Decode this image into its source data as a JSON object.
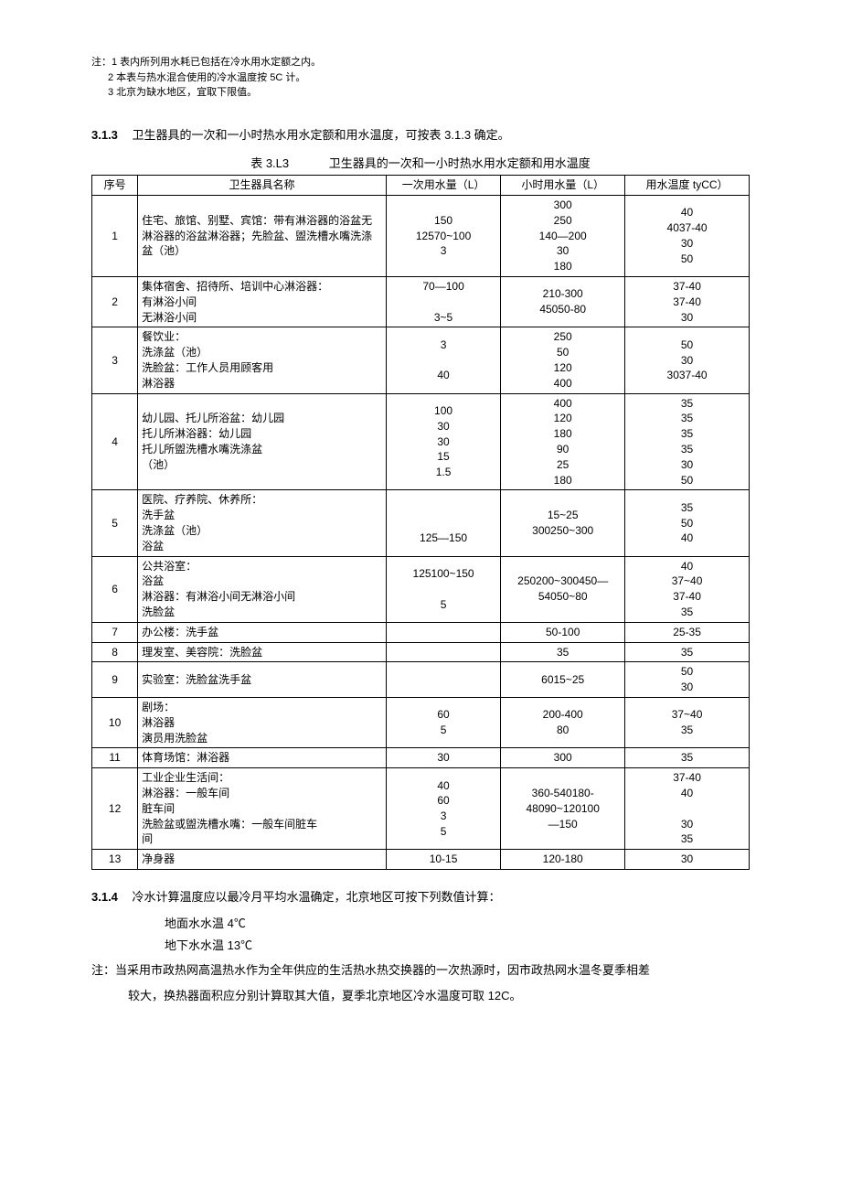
{
  "notes_top": {
    "n1": "注：1 表内所列用水耗已包括在冷水用水定额之内。",
    "n2": "2 本表与热水混合使用的冷水温度按 5C 计。",
    "n3": "3 北京为缺水地区，宜取下限值。"
  },
  "sec313": {
    "num": "3.1.3",
    "text": "卫生器具的一次和一小时热水用水定额和用水温度，可按表 3.1.3 确定。"
  },
  "table_caption": {
    "lbl": "表 3.L3",
    "title": "卫生器具的一次和一小时热水用水定额和用水温度"
  },
  "headers": {
    "h1": "序号",
    "h2": "卫生器具名称",
    "h3": "一次用水量（L）",
    "h4": "小时用水量（L）",
    "h5": "用水温度 tyCC）"
  },
  "rows": [
    {
      "no": "1",
      "name": "住宅、旅馆、别墅、宾馆：带有淋浴器的浴盆无淋浴器的浴盆淋浴器；先脸盆、盥洗槽水嘴洗涤盆（池）",
      "c3": "150\n12570~100\n3",
      "c4": "300\n250\n140—200\n30\n180",
      "c5": "40\n4037-40\n30\n50"
    },
    {
      "no": "2",
      "name": "集体宿舍、招待所、培训中心淋浴器：\n有淋浴小间\n无淋浴小间",
      "c3": "70—100\n\n3~5",
      "c4": "210-300\n45050-80",
      "c5": "37-40\n37-40\n30"
    },
    {
      "no": "3",
      "name": "餐饮业：\n洗涤盆（池）\n洗脸盆：工作人员用顾客用\n淋浴器",
      "c3": "3\n\n40",
      "c4": "250\n50\n120\n400",
      "c5": "50\n30\n3037-40"
    },
    {
      "no": "4",
      "name": "幼儿园、托儿所浴盆：幼儿园\n        托儿所淋浴器：幼儿园\n        托儿所盥洗槽水嘴洗涤盆\n（池）",
      "c3": "100\n30\n30\n15\n1.5",
      "c4": "400\n120\n180\n90\n25\n180",
      "c5": "35\n35\n35\n35\n30\n50"
    },
    {
      "no": "5",
      "name": "医院、疗养院、休养所：\n洗手盆\n洗涤盆（池）\n浴盆",
      "c3": "\n\n125—150",
      "c4": "15~25\n300250~300",
      "c5": "35\n50\n40"
    },
    {
      "no": "6",
      "name": "公共浴室：\n浴盆\n淋浴器：有淋浴小间无淋浴小间\n洗脸盆",
      "c3": "125100~150\n\n5",
      "c4": "250200~300450—\n54050~80",
      "c5": "40\n37~40\n37-40\n35"
    },
    {
      "no": "7",
      "name": "办公楼：洗手盆",
      "c3": "",
      "c4": "50-100",
      "c5": "25-35"
    },
    {
      "no": "8",
      "name": "理发室、美容院：洗脸盆",
      "c3": "",
      "c4": "35",
      "c5": "35"
    },
    {
      "no": "9",
      "name": "实验室：洗脸盆洗手盆",
      "c3": "",
      "c4": "6015~25",
      "c5": "50\n30"
    },
    {
      "no": "10",
      "name": "剧场：\n淋浴器\n演员用洗脸盆",
      "c3": "60\n5",
      "c4": "200-400\n80",
      "c5": "37~40\n35"
    },
    {
      "no": "11",
      "name": "体育场馆：淋浴器",
      "c3": "30",
      "c4": "300",
      "c5": "35"
    },
    {
      "no": "12",
      "name": "工业企业生活间：\n淋浴器：一般车间\n        脏车间\n洗脸盆或盥洗槽水嘴：一般车间脏车\n                                间",
      "c3": "40\n60\n3\n5",
      "c4": "360-540180-\n48090~120100\n—150",
      "c5": "37-40\n40\n\n30\n35"
    },
    {
      "no": "13",
      "name": "净身器",
      "c3": "10-15",
      "c4": "120-180",
      "c5": "30"
    }
  ],
  "sec314": {
    "num": "3.1.4",
    "text": "冷水计算温度应以最冷月平均水温确定，北京地区可按下列数值计算：",
    "line1": "地面水水温 4℃",
    "line2": "地下水水温 13℃",
    "note": "注：当采用市政热网高温热水作为全年供应的生活热水热交换器的一次热源时，因市政热网水温冬夏季相差",
    "after": "较大，换热器面积应分别计算取其大值，夏季北京地区冷水温度可取 12C。"
  }
}
